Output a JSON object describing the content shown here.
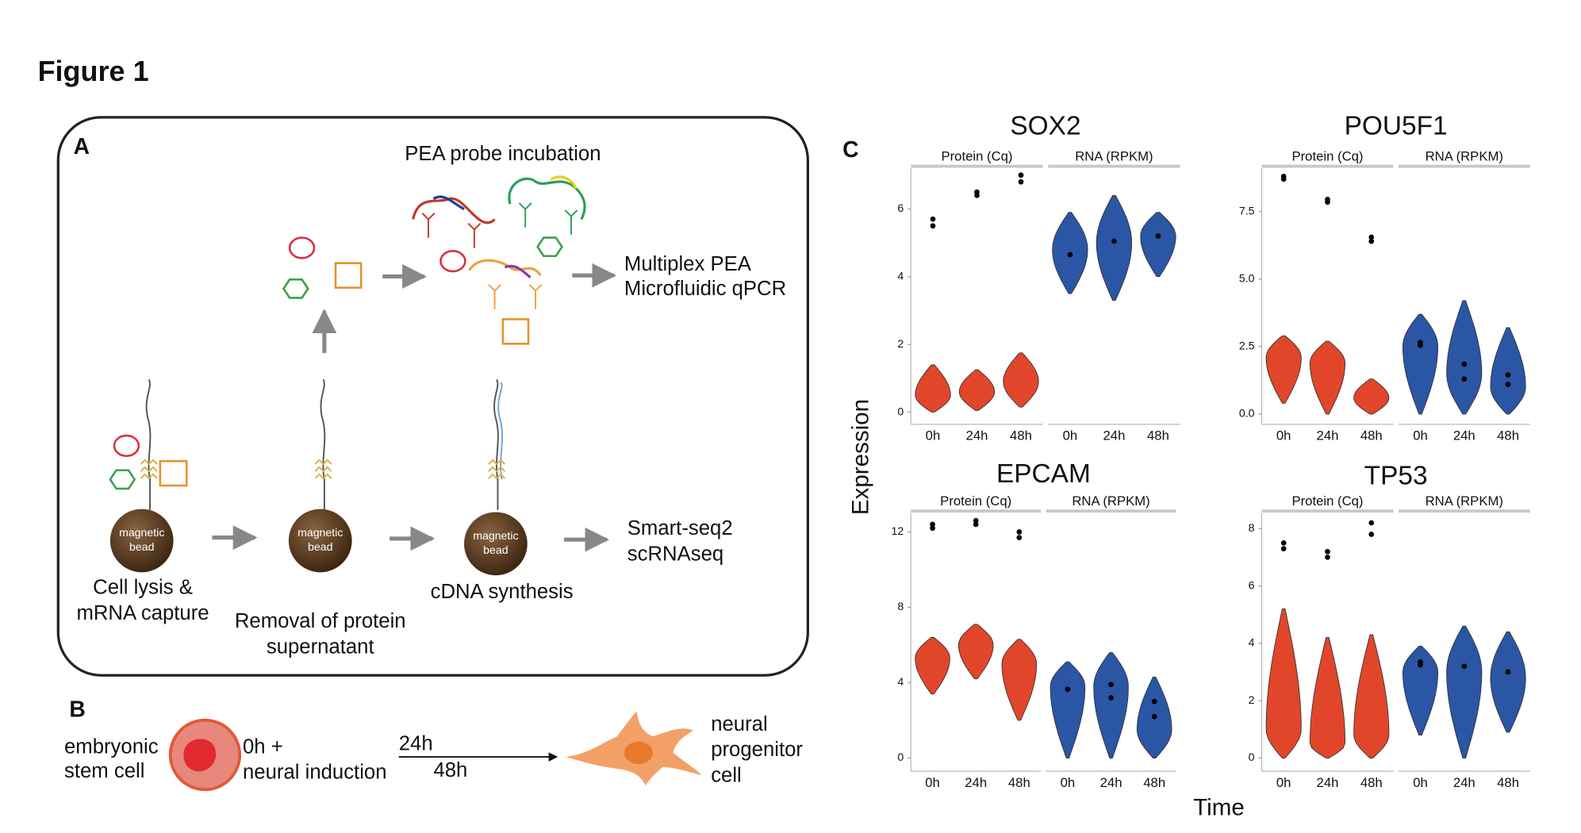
{
  "header": {
    "title": "Figure 1"
  },
  "panel_a": {
    "label": "A",
    "probe_step": "PEA probe incubation",
    "protein_readout": [
      "Multiplex PEA",
      "Microfluidic qPCR"
    ],
    "rna_readout": [
      "Smart-seq2",
      "scRNAseq"
    ],
    "bead_label": [
      "magnetic",
      "bead"
    ],
    "steps": [
      [
        "Cell lysis &",
        "mRNA capture"
      ],
      [
        "Removal of protein",
        "supernatant"
      ],
      [
        "cDNA synthesis"
      ]
    ]
  },
  "panel_b": {
    "label": "B",
    "start_cell": [
      "embryonic",
      "stem cell"
    ],
    "induction": [
      "0h +",
      "neural induction"
    ],
    "timepoints": [
      "24h",
      "48h"
    ],
    "end_cell": [
      "neural",
      "progenitor",
      "cell"
    ]
  },
  "panel_c": {
    "label": "C",
    "ylabel": "Expression",
    "xlabel": "Time"
  },
  "chart_data": [
    {
      "type": "violin",
      "title": "SOX2",
      "categories": [
        "0h",
        "24h",
        "48h"
      ],
      "ylim": [
        -0.36,
        7.2
      ],
      "yticks": [
        0,
        2,
        4,
        6
      ],
      "series": [
        {
          "name": "Protein (Cq)",
          "color": "#e2462a",
          "violins": [
            {
              "min": 0,
              "mode": 0.5,
              "max": 1.4,
              "points": [
                5.5,
                5.7
              ]
            },
            {
              "min": 0.05,
              "mode": 0.6,
              "max": 1.25,
              "points": [
                6.4,
                6.5
              ]
            },
            {
              "min": 0.15,
              "mode": 0.9,
              "max": 1.75,
              "points": [
                6.8,
                7.0
              ]
            }
          ]
        },
        {
          "name": "RNA (RPKM)",
          "color": "#2a56a5",
          "violins": [
            {
              "min": 3.5,
              "mode": 4.8,
              "max": 5.9,
              "points": [
                4.65
              ]
            },
            {
              "min": 3.3,
              "mode": 5.0,
              "max": 6.4,
              "points": [
                5.05
              ]
            },
            {
              "min": 4.0,
              "mode": 5.2,
              "max": 5.9,
              "points": [
                5.2
              ]
            }
          ]
        }
      ]
    },
    {
      "type": "violin",
      "title": "POU5F1",
      "categories": [
        "0h",
        "24h",
        "48h"
      ],
      "ylim": [
        -0.38,
        9.1
      ],
      "yticks": [
        {
          "value": 0,
          "label": "0.0"
        },
        2.5,
        {
          "value": 5,
          "label": "5.0"
        },
        7.5
      ],
      "series": [
        {
          "name": "Protein (Cq)",
          "color": "#e2462a",
          "violins": [
            {
              "min": 0.4,
              "mode": 2.1,
              "max": 2.9,
              "points": [
                8.7,
                8.8
              ]
            },
            {
              "min": 0,
              "mode": 1.9,
              "max": 2.7,
              "points": [
                7.85,
                7.95
              ]
            },
            {
              "min": 0,
              "mode": 0.6,
              "max": 1.3,
              "points": [
                6.4,
                6.55
              ]
            }
          ]
        },
        {
          "name": "RNA (RPKM)",
          "color": "#2a56a5",
          "violins": [
            {
              "min": 0,
              "mode": 2.5,
              "max": 3.7,
              "points": [
                2.55,
                2.65
              ]
            },
            {
              "min": 0,
              "mode": 1.5,
              "max": 4.2,
              "points": [
                1.3,
                1.85
              ]
            },
            {
              "min": 0,
              "mode": 1.0,
              "max": 3.2,
              "points": [
                1.1,
                1.45
              ]
            }
          ]
        }
      ]
    },
    {
      "type": "violin",
      "title": "EPCAM",
      "categories": [
        "0h",
        "24h",
        "48h"
      ],
      "ylim": [
        -0.7,
        13
      ],
      "yticks": [
        0,
        4,
        8,
        12
      ],
      "series": [
        {
          "name": "Protein (Cq)",
          "color": "#e2462a",
          "violins": [
            {
              "min": 3.4,
              "mode": 5.3,
              "max": 6.4,
              "points": [
                12.2,
                12.4
              ]
            },
            {
              "min": 4.2,
              "mode": 6.0,
              "max": 7.1,
              "points": [
                12.4,
                12.6
              ]
            },
            {
              "min": 2.0,
              "mode": 5.0,
              "max": 6.3,
              "points": [
                11.7,
                12.0
              ]
            }
          ]
        },
        {
          "name": "RNA (RPKM)",
          "color": "#2a56a5",
          "violins": [
            {
              "min": 0,
              "mode": 3.8,
              "max": 5.1,
              "points": [
                3.65
              ]
            },
            {
              "min": 0,
              "mode": 3.8,
              "max": 5.6,
              "points": [
                3.2,
                3.9
              ]
            },
            {
              "min": 0,
              "mode": 1.5,
              "max": 4.3,
              "points": [
                2.2,
                3.0
              ]
            }
          ]
        }
      ]
    },
    {
      "type": "violin",
      "title": "TP53",
      "categories": [
        "0h",
        "24h",
        "48h"
      ],
      "ylim": [
        -0.46,
        8.54
      ],
      "yticks": [
        0,
        2,
        4,
        6,
        8
      ],
      "series": [
        {
          "name": "Protein (Cq)",
          "color": "#e2462a",
          "violins": [
            {
              "min": 0,
              "mode": 1.0,
              "max": 5.2,
              "points": [
                7.3,
                7.5
              ]
            },
            {
              "min": 0,
              "mode": 0.5,
              "max": 4.2,
              "points": [
                7.0,
                7.2
              ]
            },
            {
              "min": 0,
              "mode": 0.8,
              "max": 4.3,
              "points": [
                7.8,
                8.2
              ]
            }
          ]
        },
        {
          "name": "RNA (RPKM)",
          "color": "#2a56a5",
          "violins": [
            {
              "min": 0.8,
              "mode": 3.0,
              "max": 3.9,
              "points": [
                3.25,
                3.35
              ]
            },
            {
              "min": 0,
              "mode": 3.0,
              "max": 4.6,
              "points": [
                3.2
              ]
            },
            {
              "min": 0.9,
              "mode": 2.8,
              "max": 4.4,
              "points": [
                3.0
              ]
            }
          ]
        }
      ]
    }
  ]
}
